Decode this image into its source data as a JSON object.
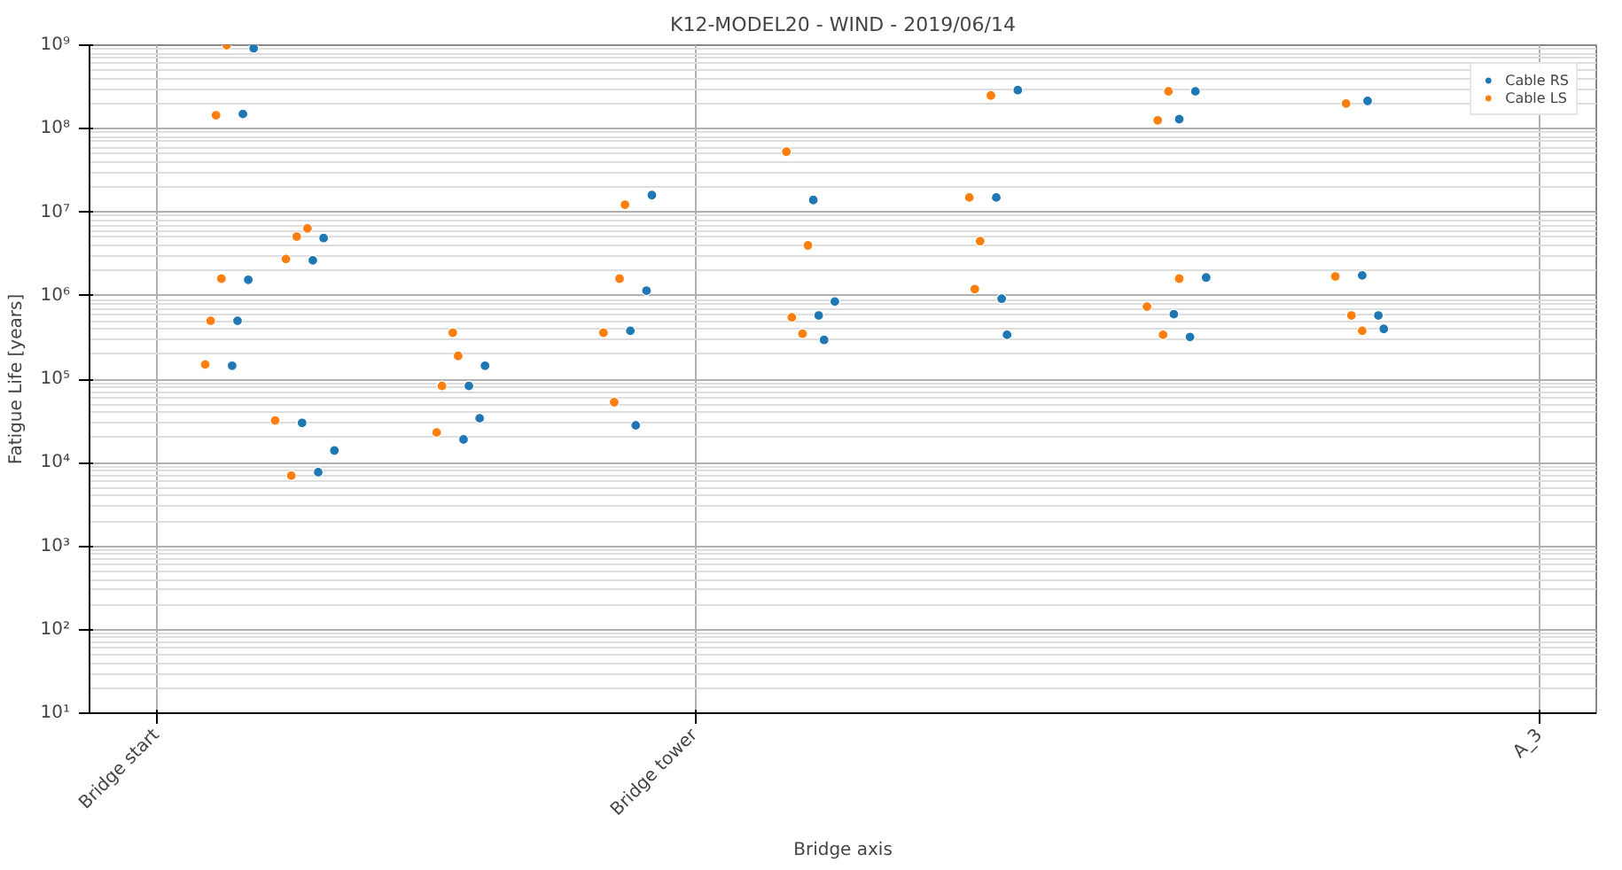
{
  "chart_data": {
    "type": "scatter",
    "title": "K12-MODEL20 - WIND - 2019/06/14",
    "xlabel": "Bridge axis",
    "ylabel": "Fatigue Life [years]",
    "log": "y",
    "grid": true,
    "legend": "top right",
    "marker": "circle",
    "categories": [
      null,
      null,
      null,
      null,
      null,
      null,
      null,
      null,
      null,
      null,
      null,
      null,
      "Bridge start",
      null,
      null,
      null,
      null,
      null,
      null,
      null,
      null,
      null,
      null,
      null,
      null,
      null,
      null,
      null,
      null,
      null,
      null,
      null,
      null,
      null,
      null,
      null,
      null,
      null,
      null,
      null,
      null,
      null,
      null,
      null,
      null,
      null,
      null,
      null,
      null,
      null,
      null,
      null,
      null,
      null,
      null,
      null,
      null,
      null,
      null,
      null,
      null,
      null,
      null,
      null,
      null,
      null,
      null,
      null,
      null,
      null,
      null,
      null,
      null,
      null,
      null,
      null,
      null,
      null,
      null,
      null,
      null,
      null,
      null,
      null,
      null,
      null,
      null,
      null,
      null,
      null,
      null,
      null,
      null,
      null,
      null,
      null,
      null,
      null,
      null,
      null,
      null,
      null,
      null,
      null,
      null,
      null,
      null,
      null,
      null,
      null,
      null,
      null,
      "Bridge tower",
      null,
      null,
      null,
      null,
      null,
      null,
      null,
      null,
      null,
      null,
      null,
      null,
      null,
      null,
      null,
      null,
      null,
      null,
      null,
      null,
      null,
      null,
      null,
      null,
      null,
      null,
      null,
      null,
      null,
      null,
      null,
      null,
      null,
      null,
      null,
      null,
      null,
      null,
      null,
      null,
      null,
      null,
      null,
      null,
      null,
      null,
      null,
      null,
      null,
      null,
      null,
      null,
      null,
      null,
      null,
      null,
      null,
      null,
      null,
      null,
      null,
      null,
      null,
      null,
      null,
      null,
      null,
      null,
      null,
      null,
      null,
      null,
      null,
      null,
      null,
      null,
      null,
      null,
      null,
      null,
      null,
      null,
      null,
      null,
      null,
      null,
      null,
      null,
      null,
      null,
      null,
      null,
      null,
      null,
      null,
      null,
      null,
      null,
      null,
      null,
      null,
      null,
      null,
      null,
      null,
      null,
      null,
      null,
      null,
      null,
      null,
      null,
      null,
      null,
      null,
      null,
      null,
      null,
      null,
      null,
      null,
      null,
      null,
      null,
      null,
      null,
      null,
      null,
      null,
      null,
      null,
      null,
      null,
      null,
      null,
      null,
      null,
      null,
      null,
      null,
      null,
      null,
      null,
      null,
      null,
      null,
      null,
      null,
      null,
      null,
      null,
      null,
      null,
      null,
      null,
      null,
      "A_3",
      null,
      null,
      null,
      null,
      null,
      null,
      null,
      null,
      null,
      null
    ],
    "ylim": [
      10,
      1000000000
    ],
    "yticks": [
      {
        "value": 10,
        "label": "10¹"
      },
      {
        "value": 100,
        "label": "10²"
      },
      {
        "value": 1000,
        "label": "10³"
      },
      {
        "value": 10000,
        "label": "10⁴"
      },
      {
        "value": 100000,
        "label": "10⁵"
      },
      {
        "value": 1000000,
        "label": "10⁶"
      },
      {
        "value": 10000000,
        "label": "10⁷"
      },
      {
        "value": 100000000,
        "label": "10⁸"
      },
      {
        "value": 1000000000,
        "label": "10⁹"
      }
    ],
    "series": [
      {
        "name": "Cable RS",
        "color": "#1f77b4",
        "values": [
          null,
          null,
          null,
          null,
          null,
          null,
          null,
          null,
          null,
          null,
          null,
          null,
          null,
          null,
          null,
          null,
          null,
          null,
          null,
          null,
          null,
          null,
          null,
          null,
          null,
          null,
          145000,
          500000,
          150000000,
          1550000,
          920000000,
          null,
          null,
          null,
          null,
          null,
          null,
          null,
          null,
          30000,
          null,
          2650000,
          7700,
          4900000,
          null,
          14000,
          null,
          null,
          null,
          null,
          null,
          null,
          null,
          null,
          null,
          null,
          null,
          null,
          null,
          null,
          null,
          null,
          null,
          null,
          null,
          null,
          null,
          null,
          null,
          19000,
          83000,
          null,
          34000,
          145000,
          null,
          null,
          null,
          null,
          null,
          null,
          null,
          null,
          null,
          null,
          null,
          null,
          null,
          null,
          null,
          null,
          null,
          null,
          null,
          null,
          null,
          null,
          null,
          null,
          null,
          null,
          380000,
          28000,
          null,
          1150000,
          16000000,
          null,
          null,
          null,
          null,
          null,
          null,
          null,
          null,
          null,
          null,
          null,
          null,
          null,
          null,
          null,
          null,
          null,
          null,
          null,
          null,
          null,
          null,
          null,
          null,
          null,
          null,
          null,
          null,
          null,
          14000000,
          580000,
          295000,
          null,
          850000,
          null,
          null,
          null,
          null,
          null,
          null,
          null,
          null,
          null,
          null,
          null,
          null,
          null,
          null,
          null,
          null,
          null,
          null,
          null,
          null,
          null,
          null,
          null,
          null,
          null,
          null,
          null,
          null,
          null,
          15000000,
          920000,
          340000,
          null,
          290000000,
          null,
          null,
          null,
          null,
          null,
          null,
          null,
          null,
          null,
          null,
          null,
          null,
          null,
          null,
          null,
          null,
          null,
          null,
          null,
          null,
          null,
          null,
          null,
          null,
          null,
          null,
          null,
          null,
          600000,
          130000000,
          null,
          320000,
          280000000,
          null,
          1650000,
          null,
          null,
          null,
          null,
          null,
          null,
          null,
          null,
          null,
          null,
          null,
          null,
          null,
          null,
          null,
          null,
          null,
          null,
          null,
          null,
          null,
          null,
          null,
          null,
          null,
          null,
          null,
          null,
          1750000,
          215000000,
          null,
          580000,
          400000,
          null,
          null,
          null,
          null,
          null,
          null,
          null,
          null,
          null,
          null,
          null,
          null,
          null,
          null,
          null,
          null,
          null,
          null,
          null,
          null,
          null,
          null,
          null,
          null,
          null,
          null,
          null,
          null,
          null,
          null,
          null,
          null,
          null,
          null,
          null,
          null,
          null,
          null,
          null
        ]
      },
      {
        "name": "Cable LS",
        "color": "#ff7f0e",
        "values": [
          null,
          null,
          null,
          null,
          null,
          null,
          null,
          null,
          null,
          null,
          null,
          null,
          null,
          null,
          null,
          null,
          null,
          null,
          null,
          null,
          null,
          150000,
          500000,
          145000000,
          1600000,
          1000000000,
          null,
          null,
          null,
          null,
          null,
          null,
          null,
          null,
          32000,
          null,
          2750000,
          7000,
          5100000,
          null,
          6400000,
          null,
          null,
          null,
          null,
          null,
          null,
          null,
          null,
          null,
          null,
          null,
          null,
          null,
          null,
          null,
          null,
          null,
          null,
          null,
          null,
          null,
          null,
          null,
          23000,
          83000,
          null,
          360000,
          190000,
          null,
          null,
          null,
          null,
          null,
          null,
          null,
          null,
          null,
          null,
          null,
          null,
          null,
          null,
          null,
          null,
          null,
          null,
          null,
          null,
          null,
          null,
          null,
          null,
          null,
          null,
          360000,
          null,
          53000,
          1600000,
          12300000,
          null,
          null,
          null,
          null,
          null,
          null,
          null,
          null,
          null,
          null,
          null,
          null,
          null,
          null,
          null,
          null,
          null,
          null,
          null,
          null,
          null,
          null,
          null,
          null,
          null,
          null,
          null,
          null,
          null,
          53000000,
          550000,
          null,
          350000,
          4000000,
          null,
          null,
          null,
          null,
          null,
          null,
          null,
          null,
          null,
          null,
          null,
          null,
          null,
          null,
          null,
          null,
          null,
          null,
          null,
          null,
          null,
          null,
          null,
          null,
          null,
          null,
          null,
          null,
          null,
          15000000,
          1200000,
          4500000,
          null,
          250000000,
          null,
          null,
          null,
          null,
          null,
          null,
          null,
          null,
          null,
          null,
          null,
          null,
          null,
          null,
          null,
          null,
          null,
          null,
          null,
          null,
          null,
          null,
          null,
          null,
          null,
          null,
          null,
          null,
          740000,
          null,
          126000000,
          340000,
          280000000,
          null,
          1600000,
          null,
          null,
          null,
          null,
          null,
          null,
          null,
          null,
          null,
          null,
          null,
          null,
          null,
          null,
          null,
          null,
          null,
          null,
          null,
          null,
          null,
          null,
          null,
          null,
          null,
          null,
          null,
          null,
          1700000,
          null,
          200000000,
          580000,
          null,
          380000,
          null,
          null,
          null,
          null,
          null,
          null,
          null,
          null,
          null,
          null,
          null,
          null,
          null,
          null,
          null,
          null,
          null,
          null,
          null,
          null,
          null,
          null,
          null,
          null,
          null,
          null,
          null,
          null,
          null,
          null,
          null,
          null,
          null,
          null,
          null,
          null,
          null,
          null,
          null,
          null,
          null,
          null,
          null
        ]
      }
    ]
  }
}
